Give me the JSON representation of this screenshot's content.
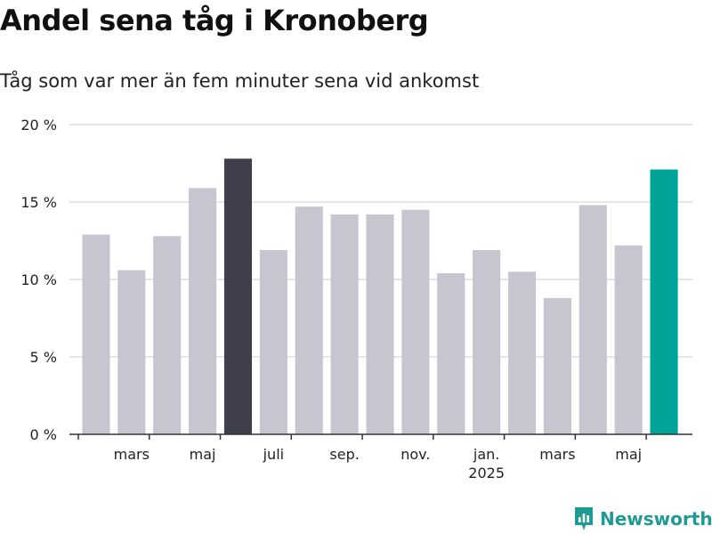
{
  "header": {
    "title": "Andel sena tåg i Kronoberg",
    "subtitle": "Tåg som var mer än fem minuter sena vid ankomst"
  },
  "brand": {
    "name": "Newsworthy",
    "color": "#1f9a95"
  },
  "colors": {
    "bar": "#c7c6d0",
    "highlight_dark": "#3f3e4b",
    "highlight_accent": "#00a398",
    "grid": "#dddddd",
    "axis": "#333333"
  },
  "chart_data": {
    "type": "bar",
    "x": [
      "2024-02",
      "2024-03",
      "2024-04",
      "2024-05",
      "2024-06",
      "2024-07",
      "2024-08",
      "2024-09",
      "2024-10",
      "2024-11",
      "2024-12",
      "2025-01",
      "2025-02",
      "2025-03",
      "2025-04",
      "2025-05",
      "2025-06"
    ],
    "values": [
      12.9,
      10.6,
      12.8,
      15.9,
      17.8,
      11.9,
      14.7,
      14.2,
      14.2,
      14.5,
      10.4,
      11.9,
      10.5,
      8.8,
      14.8,
      12.2,
      17.1
    ],
    "highlight": [
      {
        "x": "2024-06",
        "color": "#3f3e4b"
      },
      {
        "x": "2025-06",
        "color": "#00a398"
      }
    ],
    "unit": "%",
    "ylim": [
      0,
      20
    ],
    "yticks": [
      {
        "value": 0,
        "label": "0 %"
      },
      {
        "value": 5,
        "label": "5 %"
      },
      {
        "value": 10,
        "label": "10 %"
      },
      {
        "value": 15,
        "label": "15 %"
      },
      {
        "value": 20,
        "label": "20 %"
      }
    ],
    "xticks": [
      {
        "x": "2024-03",
        "label": "mars"
      },
      {
        "x": "2024-05",
        "label": "maj"
      },
      {
        "x": "2024-07",
        "label": "juli"
      },
      {
        "x": "2024-09",
        "label": "sep."
      },
      {
        "x": "2024-11",
        "label": "nov."
      },
      {
        "x": "2025-01",
        "label": "jan.",
        "year": "2025"
      },
      {
        "x": "2025-03",
        "label": "mars"
      },
      {
        "x": "2025-05",
        "label": "maj"
      }
    ],
    "grid": true,
    "legend": "none"
  }
}
